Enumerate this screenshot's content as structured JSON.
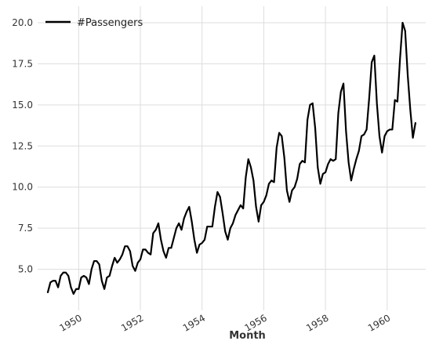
{
  "chart_data": {
    "type": "line",
    "title": "",
    "xlabel": "Month",
    "ylabel": "",
    "xlim": [
      1948.67,
      1961.25
    ],
    "ylim": [
      2.5,
      21.0
    ],
    "grid": true,
    "legend_position": "top-left",
    "x_ticks": [
      {
        "value": 1950,
        "label": "1950"
      },
      {
        "value": 1952,
        "label": "1952"
      },
      {
        "value": 1954,
        "label": "1954"
      },
      {
        "value": 1956,
        "label": "1956"
      },
      {
        "value": 1958,
        "label": "1958"
      },
      {
        "value": 1960,
        "label": "1960"
      }
    ],
    "y_ticks": [
      {
        "value": 5.0,
        "label": "5.0"
      },
      {
        "value": 7.5,
        "label": "7.5"
      },
      {
        "value": 10.0,
        "label": "10.0"
      },
      {
        "value": 12.5,
        "label": "12.5"
      },
      {
        "value": 15.0,
        "label": "15.0"
      },
      {
        "value": 17.5,
        "label": "17.5"
      },
      {
        "value": 20.0,
        "label": "20.0"
      }
    ],
    "series": [
      {
        "name": "#Passengers",
        "color": "#000000",
        "x_start": "1949-01",
        "x_frequency": "monthly",
        "values": [
          3.6,
          4.2,
          4.3,
          4.3,
          3.9,
          4.6,
          4.8,
          4.8,
          4.6,
          3.9,
          3.5,
          3.8,
          3.8,
          4.5,
          4.6,
          4.5,
          4.1,
          5.0,
          5.5,
          5.5,
          5.3,
          4.3,
          3.8,
          4.5,
          4.6,
          5.2,
          5.7,
          5.4,
          5.6,
          5.9,
          6.4,
          6.4,
          6.1,
          5.2,
          4.9,
          5.4,
          5.6,
          6.2,
          6.2,
          6.0,
          5.9,
          7.2,
          7.4,
          7.8,
          6.8,
          6.1,
          5.7,
          6.3,
          6.3,
          6.9,
          7.5,
          7.8,
          7.4,
          8.1,
          8.5,
          8.8,
          7.9,
          6.8,
          6.0,
          6.5,
          6.6,
          6.8,
          7.6,
          7.6,
          7.6,
          8.8,
          9.7,
          9.4,
          8.4,
          7.3,
          6.8,
          7.5,
          7.8,
          8.3,
          8.6,
          8.9,
          8.7,
          10.6,
          11.7,
          11.2,
          10.4,
          8.8,
          7.9,
          8.9,
          9.1,
          9.5,
          10.2,
          10.4,
          10.3,
          12.4,
          13.3,
          13.1,
          11.8,
          9.8,
          9.1,
          9.8,
          10.0,
          10.5,
          11.4,
          11.6,
          11.5,
          14.1,
          15.0,
          15.1,
          13.6,
          11.2,
          10.2,
          10.8,
          10.9,
          11.4,
          11.7,
          11.6,
          11.7,
          14.5,
          15.8,
          16.3,
          13.4,
          11.5,
          10.4,
          11.1,
          11.7,
          12.2,
          13.1,
          13.2,
          13.5,
          15.4,
          17.6,
          18.0,
          15.1,
          13.1,
          12.1,
          13.1,
          13.4,
          13.5,
          13.5,
          15.3,
          15.2,
          17.8,
          20.0,
          19.5,
          16.8,
          14.7,
          13.0,
          13.9
        ]
      }
    ]
  }
}
